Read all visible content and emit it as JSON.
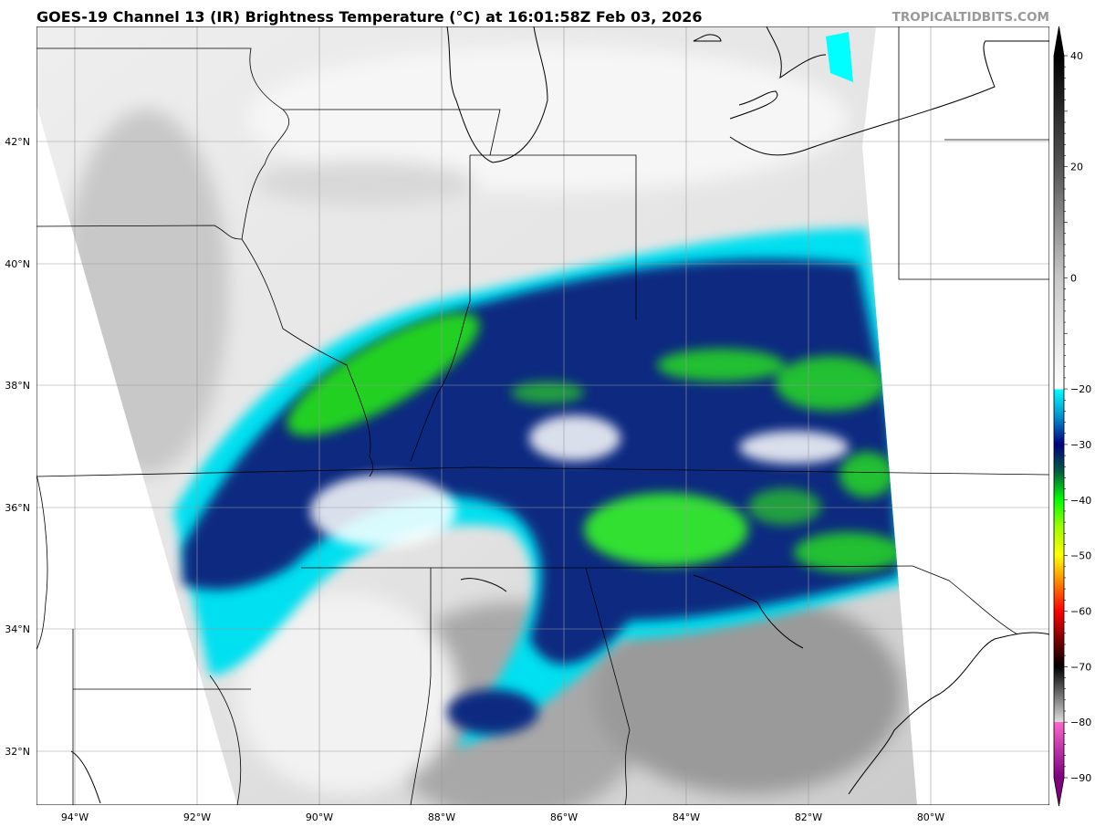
{
  "title": "GOES-19 Channel 13 (IR) Brightness Temperature (°C) at 16:01:58Z Feb 03, 2026",
  "watermark": "TROPICALTIDBITS.COM",
  "map": {
    "longitude_labels": [
      "94°W",
      "92°W",
      "90°W",
      "88°W",
      "86°W",
      "84°W",
      "82°W",
      "80°W"
    ],
    "latitude_labels": [
      "42°N",
      "40°N",
      "38°N",
      "36°N",
      "34°N",
      "32°N"
    ]
  },
  "colorbar": {
    "ticks": [
      "40",
      "20",
      "0",
      "−20",
      "−30",
      "−40",
      "−50",
      "−60",
      "−70",
      "−80",
      "−90"
    ],
    "tick_values": [
      40,
      20,
      0,
      -20,
      -30,
      -40,
      -50,
      -60,
      -70,
      -80,
      -90
    ],
    "range": [
      -90,
      40
    ],
    "colors": {
      "warm": "#000000",
      "neutral": "#ffffff",
      "cyan": "#00ffff",
      "navy": "#000080",
      "green": "#00ff00",
      "yellow": "#ffff00",
      "red": "#ff0000",
      "pink": "#ff66cc",
      "purple": "#800080"
    }
  }
}
